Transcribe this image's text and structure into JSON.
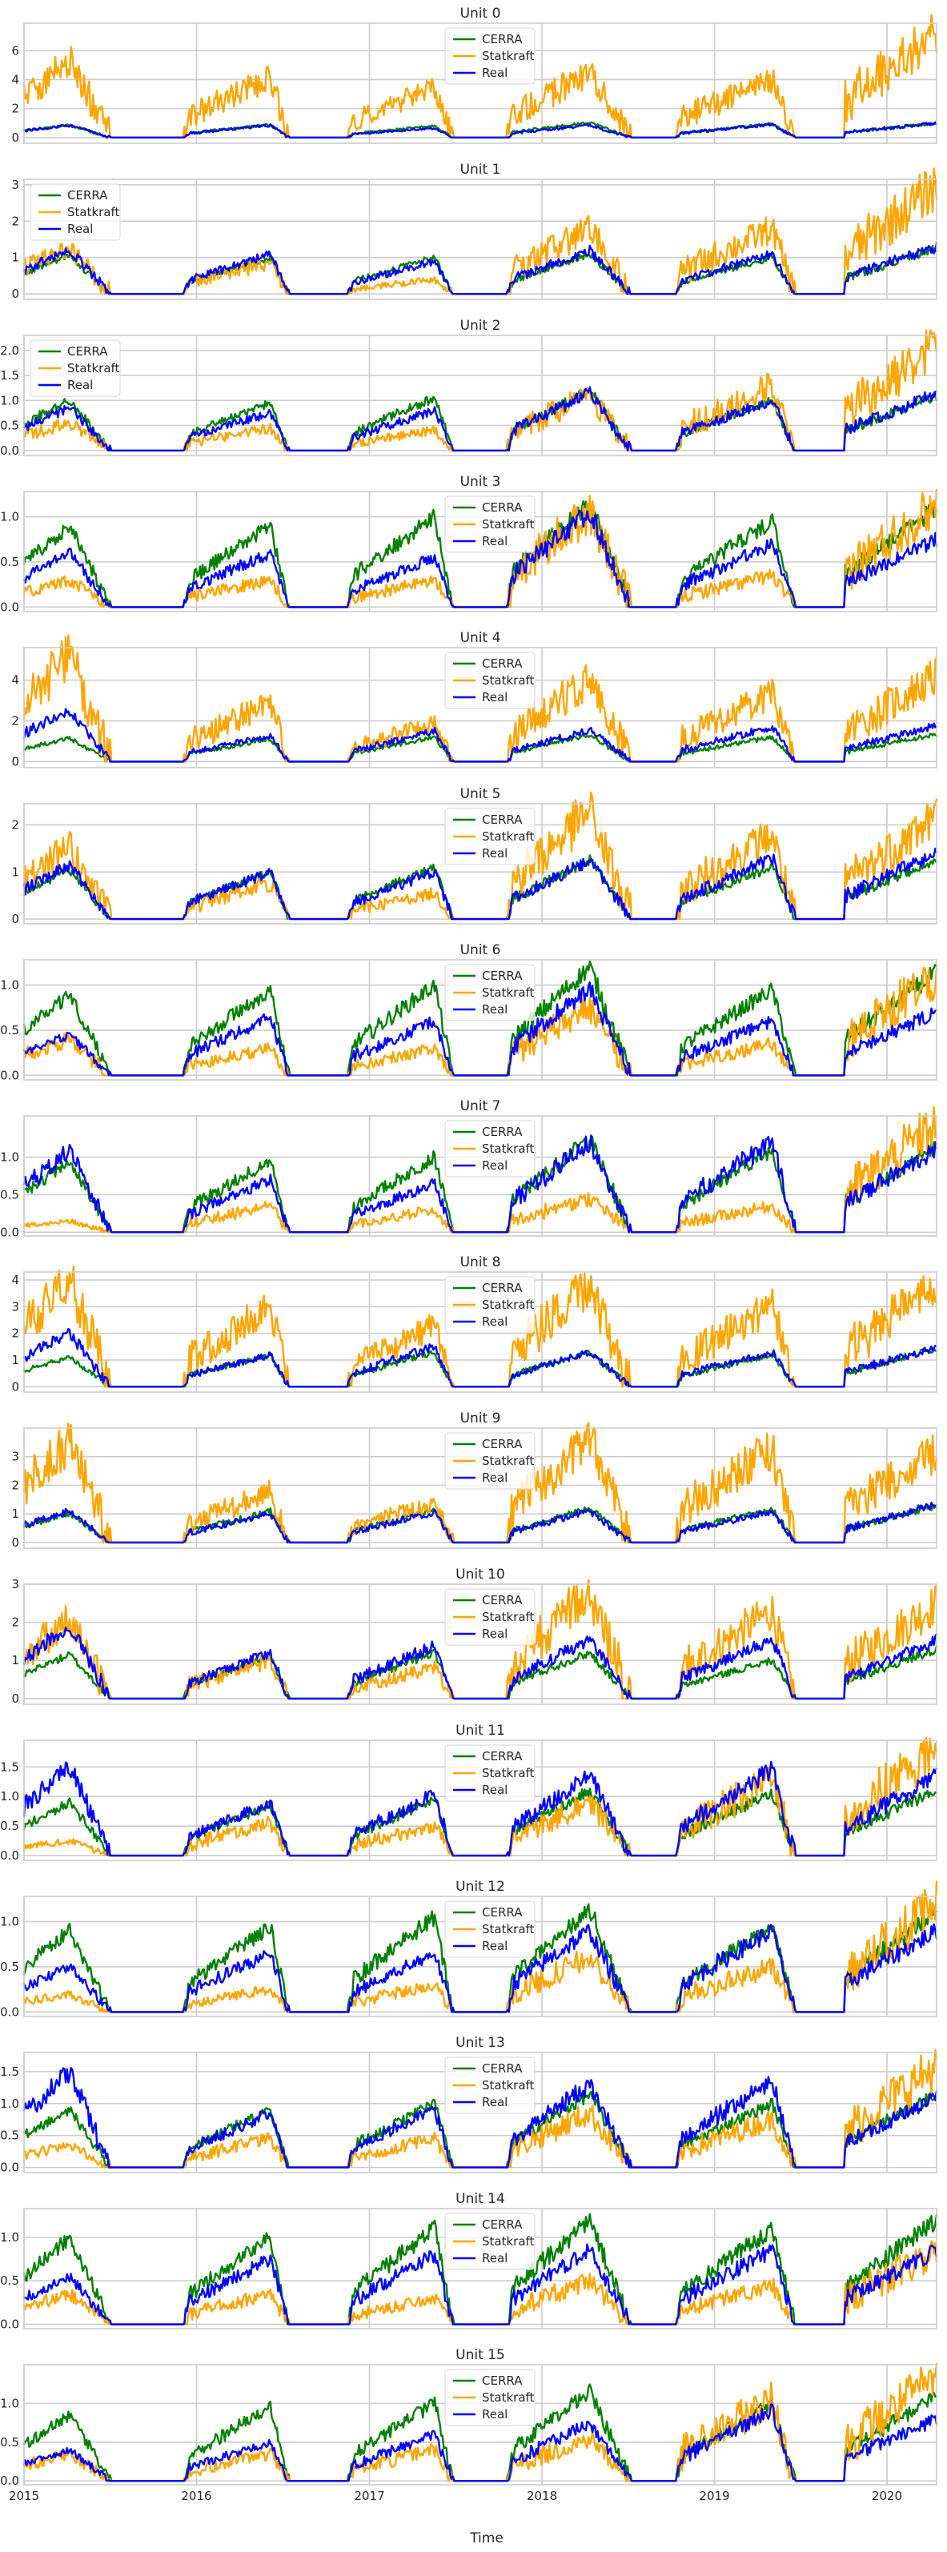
{
  "chart_data": {
    "type": "line",
    "xlabel": "Time",
    "x_ticks": [
      "2015",
      "2016",
      "2017",
      "2018",
      "2019",
      "2020"
    ],
    "xlim": [
      "2015-01-01",
      "2020-04-15"
    ],
    "grid": true,
    "colors": {
      "CERRA": "#008000",
      "Statkraft": "#ffa500",
      "Real": "#0000ff"
    },
    "panels": [
      {
        "title": "Unit 0",
        "ylim": [
          -0.4,
          7.9
        ],
        "yticks": [
          "0",
          "2",
          "4",
          "6"
        ],
        "legend": "top-center",
        "series": [
          {
            "name": "CERRA",
            "peaks": [
              0.85,
              0.9,
              0.8,
              1.05,
              0.95,
              1.0
            ]
          },
          {
            "name": "Statkraft",
            "peaks": [
              5.3,
              4.1,
              3.4,
              4.5,
              4.0,
              7.3
            ]
          },
          {
            "name": "Real",
            "peaks": [
              0.85,
              0.85,
              0.65,
              0.85,
              0.9,
              1.0
            ]
          }
        ]
      },
      {
        "title": "Unit 1",
        "ylim": [
          -0.15,
          3.15
        ],
        "yticks": [
          "0",
          "1",
          "2",
          "3"
        ],
        "legend": "top-left",
        "series": [
          {
            "name": "CERRA",
            "peaks": [
              1.05,
              1.0,
              1.0,
              1.1,
              1.0,
              1.25
            ]
          },
          {
            "name": "Statkraft",
            "peaks": [
              1.3,
              0.85,
              0.4,
              1.8,
              1.8,
              3.0
            ]
          },
          {
            "name": "Real",
            "peaks": [
              1.2,
              1.1,
              0.9,
              1.2,
              1.1,
              1.3
            ]
          }
        ]
      },
      {
        "title": "Unit 2",
        "ylim": [
          -0.1,
          2.3
        ],
        "yticks": [
          "0.0",
          "0.5",
          "1.0",
          "1.5",
          "2.0"
        ],
        "legend": "top-left",
        "series": [
          {
            "name": "CERRA",
            "peaks": [
              1.0,
              0.95,
              1.05,
              1.2,
              1.0,
              1.1
            ]
          },
          {
            "name": "Statkraft",
            "peaks": [
              0.55,
              0.45,
              0.4,
              1.1,
              1.3,
              2.1
            ]
          },
          {
            "name": "Real",
            "peaks": [
              0.85,
              0.75,
              0.8,
              1.15,
              1.0,
              1.15
            ]
          }
        ]
      },
      {
        "title": "Unit 3",
        "ylim": [
          -0.05,
          1.28
        ],
        "yticks": [
          "0.0",
          "0.5",
          "1.0"
        ],
        "legend": "top-center",
        "series": [
          {
            "name": "CERRA",
            "peaks": [
              0.9,
              0.9,
              1.0,
              1.15,
              0.95,
              1.1
            ]
          },
          {
            "name": "Statkraft",
            "peaks": [
              0.3,
              0.3,
              0.3,
              1.05,
              0.35,
              1.15
            ]
          },
          {
            "name": "Real",
            "peaks": [
              0.6,
              0.6,
              0.55,
              1.05,
              0.7,
              0.75
            ]
          }
        ]
      },
      {
        "title": "Unit 4",
        "ylim": [
          -0.3,
          5.6
        ],
        "yticks": [
          "0",
          "2",
          "4"
        ],
        "legend": "top-center",
        "series": [
          {
            "name": "CERRA",
            "peaks": [
              1.15,
              1.1,
              1.2,
              1.3,
              1.2,
              1.35
            ]
          },
          {
            "name": "Statkraft",
            "peaks": [
              5.2,
              2.9,
              1.9,
              4.0,
              3.3,
              4.2
            ]
          },
          {
            "name": "Real",
            "peaks": [
              2.5,
              1.3,
              1.5,
              1.55,
              1.7,
              1.8
            ]
          }
        ]
      },
      {
        "title": "Unit 5",
        "ylim": [
          -0.1,
          2.45
        ],
        "yticks": [
          "0",
          "1",
          "2"
        ],
        "legend": "top-center",
        "series": [
          {
            "name": "CERRA",
            "peaks": [
              1.05,
              1.0,
              1.1,
              1.25,
              1.1,
              1.25
            ]
          },
          {
            "name": "Statkraft",
            "peaks": [
              1.55,
              0.75,
              0.55,
              2.3,
              1.8,
              2.2
            ]
          },
          {
            "name": "Real",
            "peaks": [
              1.15,
              1.0,
              1.0,
              1.25,
              1.3,
              1.4
            ]
          }
        ]
      },
      {
        "title": "Unit 6",
        "ylim": [
          -0.05,
          1.28
        ],
        "yticks": [
          "0.0",
          "0.5",
          "1.0"
        ],
        "legend": "top-center",
        "series": [
          {
            "name": "CERRA",
            "peaks": [
              0.9,
              0.95,
              1.0,
              1.2,
              0.95,
              1.15
            ]
          },
          {
            "name": "Statkraft",
            "peaks": [
              0.4,
              0.3,
              0.3,
              0.75,
              0.35,
              1.1
            ]
          },
          {
            "name": "Real",
            "peaks": [
              0.45,
              0.65,
              0.6,
              0.95,
              0.6,
              0.7
            ]
          }
        ]
      },
      {
        "title": "Unit 7",
        "ylim": [
          -0.05,
          1.55
        ],
        "yticks": [
          "0.0",
          "0.5",
          "1.0"
        ],
        "legend": "top-center",
        "series": [
          {
            "name": "CERRA",
            "peaks": [
              0.95,
              0.95,
              1.0,
              1.25,
              1.1,
              1.15
            ]
          },
          {
            "name": "Statkraft",
            "peaks": [
              0.15,
              0.35,
              0.3,
              0.45,
              0.35,
              1.45
            ]
          },
          {
            "name": "Real",
            "peaks": [
              1.1,
              0.7,
              0.65,
              1.2,
              1.2,
              1.1
            ]
          }
        ]
      },
      {
        "title": "Unit 8",
        "ylim": [
          -0.2,
          4.3
        ],
        "yticks": [
          "0",
          "1",
          "2",
          "3",
          "4"
        ],
        "legend": "top-center",
        "series": [
          {
            "name": "CERRA",
            "peaks": [
              1.1,
              1.2,
              1.3,
              1.3,
              1.2,
              1.45
            ]
          },
          {
            "name": "Statkraft",
            "peaks": [
              4.0,
              3.0,
              2.3,
              3.8,
              3.0,
              3.8
            ]
          },
          {
            "name": "Real",
            "peaks": [
              2.0,
              1.2,
              1.5,
              1.3,
              1.3,
              1.5
            ]
          }
        ]
      },
      {
        "title": "Unit 9",
        "ylim": [
          -0.2,
          4.0
        ],
        "yticks": [
          "0",
          "1",
          "2",
          "3"
        ],
        "legend": "top-center",
        "series": [
          {
            "name": "CERRA",
            "peaks": [
              1.0,
              1.1,
              1.15,
              1.2,
              1.2,
              1.3
            ]
          },
          {
            "name": "Statkraft",
            "peaks": [
              3.5,
              1.8,
              1.4,
              3.6,
              3.3,
              3.2
            ]
          },
          {
            "name": "Real",
            "peaks": [
              1.1,
              1.0,
              1.05,
              1.1,
              1.1,
              1.35
            ]
          }
        ]
      },
      {
        "title": "Unit 10",
        "ylim": [
          -0.15,
          3.0
        ],
        "yticks": [
          "0",
          "1",
          "2",
          "3"
        ],
        "legend": "top-center",
        "series": [
          {
            "name": "CERRA",
            "peaks": [
              1.15,
              1.1,
              1.2,
              1.2,
              1.0,
              1.3
            ]
          },
          {
            "name": "Statkraft",
            "peaks": [
              2.05,
              1.0,
              0.8,
              2.8,
              2.3,
              2.5
            ]
          },
          {
            "name": "Real",
            "peaks": [
              1.9,
              1.2,
              1.4,
              1.55,
              1.55,
              1.55
            ]
          }
        ]
      },
      {
        "title": "Unit 11",
        "ylim": [
          -0.08,
          1.95
        ],
        "yticks": [
          "0.0",
          "0.5",
          "1.0",
          "1.5"
        ],
        "legend": "top-center",
        "series": [
          {
            "name": "CERRA",
            "peaks": [
              0.9,
              0.85,
              0.95,
              1.1,
              1.05,
              1.1
            ]
          },
          {
            "name": "Statkraft",
            "peaks": [
              0.25,
              0.55,
              0.5,
              0.9,
              1.3,
              1.85
            ]
          },
          {
            "name": "Real",
            "peaks": [
              1.5,
              0.9,
              1.05,
              1.35,
              1.45,
              1.35
            ]
          }
        ]
      },
      {
        "title": "Unit 12",
        "ylim": [
          -0.05,
          1.28
        ],
        "yticks": [
          "0.0",
          "0.5",
          "1.0"
        ],
        "legend": "top-center",
        "series": [
          {
            "name": "CERRA",
            "peaks": [
              0.9,
              0.95,
              1.05,
              1.15,
              0.95,
              1.1
            ]
          },
          {
            "name": "Statkraft",
            "peaks": [
              0.2,
              0.25,
              0.3,
              0.6,
              0.5,
              1.2
            ]
          },
          {
            "name": "Real",
            "peaks": [
              0.5,
              0.65,
              0.65,
              0.9,
              0.9,
              0.9
            ]
          }
        ]
      },
      {
        "title": "Unit 13",
        "ylim": [
          -0.08,
          1.8
        ],
        "yticks": [
          "0.0",
          "0.5",
          "1.0",
          "1.5"
        ],
        "legend": "top-center",
        "series": [
          {
            "name": "CERRA",
            "peaks": [
              0.9,
              0.9,
              1.0,
              1.15,
              1.0,
              1.15
            ]
          },
          {
            "name": "Statkraft",
            "peaks": [
              0.35,
              0.45,
              0.45,
              0.85,
              0.75,
              1.6
            ]
          },
          {
            "name": "Real",
            "peaks": [
              1.5,
              0.85,
              0.9,
              1.3,
              1.35,
              1.1
            ]
          }
        ]
      },
      {
        "title": "Unit 14",
        "ylim": [
          -0.05,
          1.33
        ],
        "yticks": [
          "0.0",
          "0.5",
          "1.0"
        ],
        "legend": "top-center",
        "series": [
          {
            "name": "CERRA",
            "peaks": [
              1.0,
              1.0,
              1.1,
              1.2,
              1.1,
              1.2
            ]
          },
          {
            "name": "Statkraft",
            "peaks": [
              0.35,
              0.35,
              0.3,
              0.5,
              0.45,
              0.85
            ]
          },
          {
            "name": "Real",
            "peaks": [
              0.55,
              0.75,
              0.8,
              0.85,
              0.85,
              0.85
            ]
          }
        ]
      },
      {
        "title": "Unit 15",
        "ylim": [
          -0.05,
          1.5
        ],
        "yticks": [
          "0.0",
          "0.5",
          "1.0"
        ],
        "legend": "top-center",
        "series": [
          {
            "name": "CERRA",
            "peaks": [
              0.85,
              0.95,
              1.0,
              1.15,
              1.0,
              1.1
            ]
          },
          {
            "name": "Statkraft",
            "peaks": [
              0.35,
              0.35,
              0.4,
              0.55,
              1.05,
              1.35
            ]
          },
          {
            "name": "Real",
            "peaks": [
              0.4,
              0.5,
              0.6,
              0.75,
              0.9,
              0.8
            ]
          }
        ]
      }
    ]
  }
}
